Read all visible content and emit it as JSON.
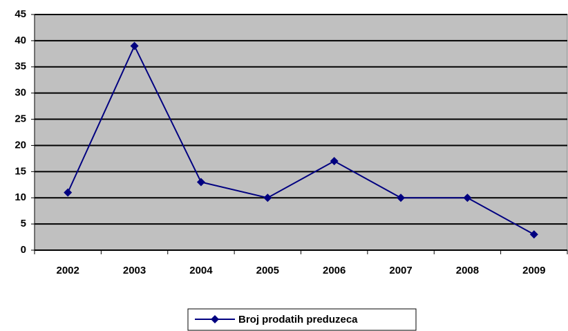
{
  "chart_data": {
    "type": "line",
    "categories": [
      "2002",
      "2003",
      "2004",
      "2005",
      "2006",
      "2007",
      "2008",
      "2009"
    ],
    "series": [
      {
        "name": "Broj prodatih preduzeca",
        "color": "#000080",
        "values": [
          11,
          39,
          13,
          10,
          17,
          10,
          10,
          3
        ]
      }
    ],
    "ylim": [
      0,
      45
    ],
    "yticks": [
      0,
      5,
      10,
      15,
      20,
      25,
      30,
      35,
      40,
      45
    ],
    "grid": true,
    "plot_background": "#c0c0c0",
    "legend": "bottom"
  }
}
